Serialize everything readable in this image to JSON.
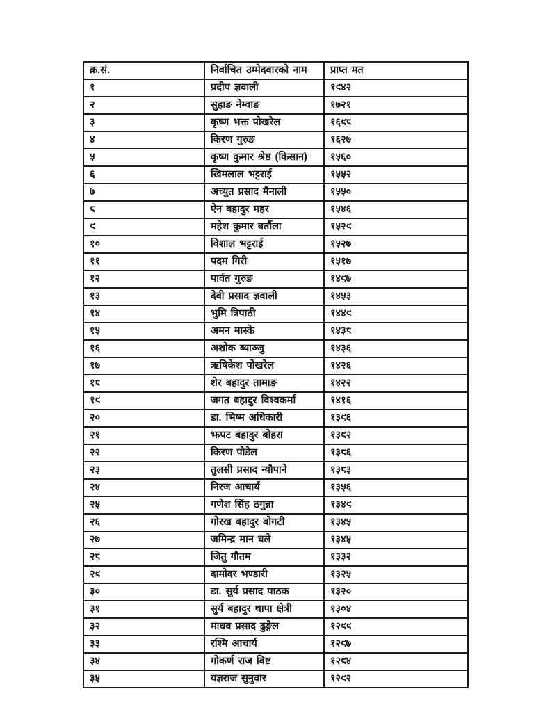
{
  "document": {
    "background_color": "#ffffff",
    "border_color": "#1c1c1c",
    "text_color": "#141414"
  },
  "table": {
    "columns": [
      "क्र.सं.",
      "निर्वाचित उम्मेदवारको नाम",
      "प्राप्त मत"
    ],
    "rows": [
      [
        "१",
        "प्रदीप ज्ञवाली",
        "१९४२"
      ],
      [
        "२",
        "सुहाङ नेम्वाङ",
        "१७२१"
      ],
      [
        "३",
        "कृष्ण भक्त पोखरेल",
        "१६९८"
      ],
      [
        "४",
        "किरण गुरुङ",
        "१६२७"
      ],
      [
        "५",
        "कृष्ण कुमार श्रेष्ठ (किसान)",
        "१५६०"
      ],
      [
        "६",
        "खिमलाल भट्टराई",
        "१५५२"
      ],
      [
        "७",
        "अच्युत प्रसाद मैनाली",
        "१५५०"
      ],
      [
        "८",
        "ऐन बहादुर महर",
        "१५४६"
      ],
      [
        "९",
        "महेश कुमार बर्तौला",
        "१५२९"
      ],
      [
        "१०",
        "विशाल भट्टराई",
        "१५२७"
      ],
      [
        "११",
        "पदम गिरी",
        "१५१७"
      ],
      [
        "१२",
        "पार्वत गुरुङ",
        "१४९७"
      ],
      [
        "१३",
        "देवी प्रसाद ज्ञवाली",
        "१४५३"
      ],
      [
        "१४",
        "भुमि त्रिपाठी",
        "१४४९"
      ],
      [
        "१५",
        "अमन मास्के",
        "१४३८"
      ],
      [
        "१६",
        "अशोक ब्याञ्जु",
        "१४३६"
      ],
      [
        "१७",
        "ऋषिकेश पोखरेल",
        "१४२६"
      ],
      [
        "१८",
        "शेर बहादुर तामाङ",
        "१४२२"
      ],
      [
        "१९",
        "जगत बहादुर विश्वकर्मा",
        "१४१६"
      ],
      [
        "२०",
        "डा. भिष्म अधिकारी",
        "१३९६"
      ],
      [
        "२१",
        "झपट बहादुर बोहरा",
        "१३९२"
      ],
      [
        "२२",
        "किरण पौडेल",
        "१३८६"
      ],
      [
        "२३",
        "तुलसी प्रसाद न्यौपाने",
        "१३८३"
      ],
      [
        "२४",
        "निरज आचार्य",
        "१३५६"
      ],
      [
        "२५",
        "गणेश सिंह ठगुन्ना",
        "१३४९"
      ],
      [
        "२६",
        "गोरख बहादुर बोगटी",
        "१३४५"
      ],
      [
        "२७",
        "जमिन्द्र मान घले",
        "१३४५"
      ],
      [
        "२८",
        "जितु गौतम",
        "१३३२"
      ],
      [
        "२९",
        "दामोदर भण्डारी",
        "१३२५"
      ],
      [
        "३०",
        "डा. सुर्य प्रसाद पाठक",
        "१३२०"
      ],
      [
        "३१",
        "सुर्य बहादुर थापा क्षेत्री",
        "१३०४"
      ],
      [
        "३२",
        "माधव प्रसाद ढुङ्गेल",
        "१२९९"
      ],
      [
        "३३",
        "रश्मि आचार्य",
        "१२९७"
      ],
      [
        "३४",
        "गोकर्ण राज विष्ट",
        "१२९४"
      ],
      [
        "३५",
        "यज्ञराज सुनुवार",
        "१२९२"
      ]
    ]
  }
}
